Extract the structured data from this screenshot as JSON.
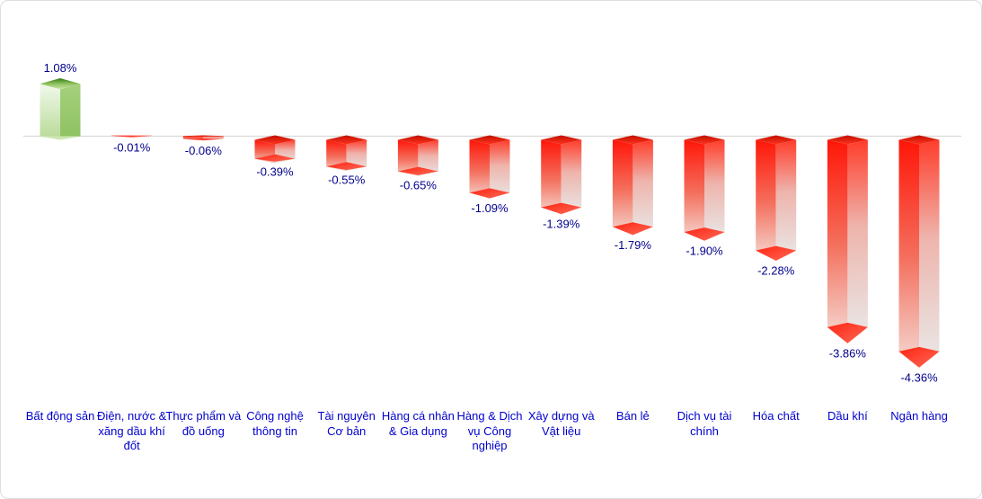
{
  "chart_data": {
    "type": "bar",
    "variant": "3d-column",
    "title": "",
    "xlabel": "",
    "ylabel": "",
    "unit": "%",
    "baseline_value": 0,
    "ylim": [
      -4.36,
      1.08
    ],
    "grid": false,
    "legend": "none",
    "categories": [
      "Bất động sản",
      "Điện, nước & xăng dầu khí đốt",
      "Thực phẩm và đồ uống",
      "Công nghệ thông tin",
      "Tài nguyên Cơ bản",
      "Hàng cá nhân & Gia dụng",
      "Hàng & Dịch vụ Công nghiệp",
      "Xây dựng và Vật liệu",
      "Bán lẻ",
      "Dịch vụ tài chính",
      "Hóa chất",
      "Dầu khí",
      "Ngân hàng"
    ],
    "values": [
      1.08,
      -0.01,
      -0.06,
      -0.39,
      -0.55,
      -0.65,
      -1.09,
      -1.39,
      -1.79,
      -1.9,
      -2.28,
      -3.86,
      -4.36
    ],
    "value_labels": [
      "1.08%",
      "-0.01%",
      "-0.06%",
      "-0.39%",
      "-0.55%",
      "-0.65%",
      "-1.09%",
      "-1.39%",
      "-1.79%",
      "-1.90%",
      "-2.28%",
      "-3.86%",
      "-4.36%"
    ],
    "colors": {
      "positive_bar": "#7ab84c",
      "negative_bar": "#ff2412",
      "value_label": "#00008b",
      "category_label": "#0000cd",
      "axis_line": "#d9d9d9",
      "card_border": "#dedede",
      "background": "#ffffff"
    }
  }
}
